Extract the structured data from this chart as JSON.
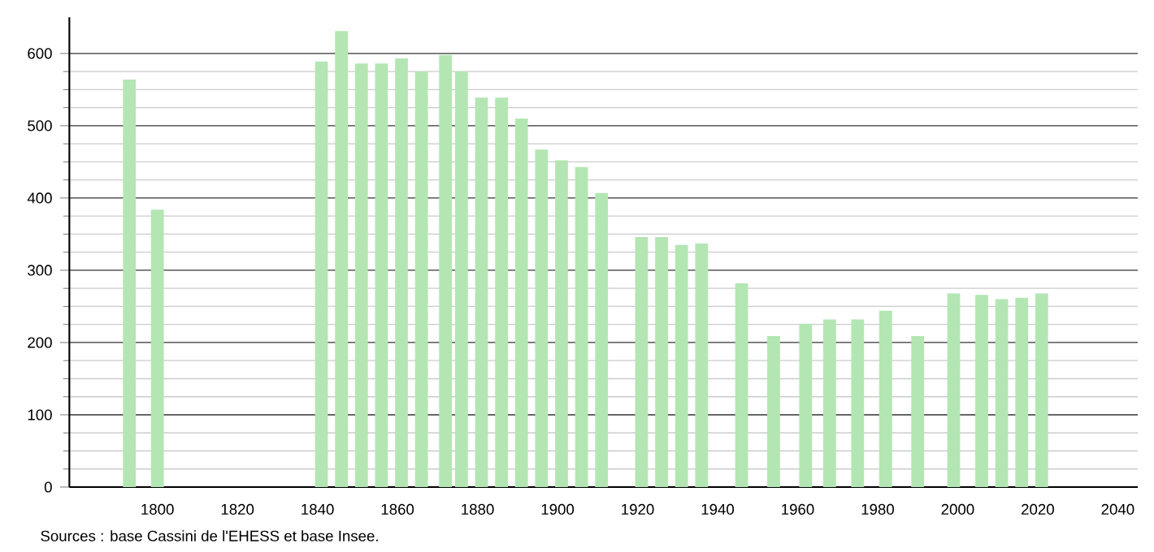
{
  "chart_data": {
    "type": "bar",
    "x": [
      1793,
      1800,
      1841,
      1846,
      1851,
      1856,
      1861,
      1866,
      1872,
      1876,
      1881,
      1886,
      1891,
      1896,
      1901,
      1906,
      1911,
      1921,
      1926,
      1931,
      1936,
      1946,
      1954,
      1962,
      1968,
      1975,
      1982,
      1990,
      1999,
      2006,
      2011,
      2016,
      2021
    ],
    "values": [
      564,
      384,
      589,
      631,
      586,
      586,
      593,
      575,
      598,
      575,
      539,
      539,
      510,
      467,
      452,
      443,
      407,
      346,
      346,
      335,
      337,
      282,
      209,
      226,
      232,
      232,
      244,
      209,
      268,
      266,
      260,
      262,
      268
    ],
    "color": "#b3e6b3",
    "xlim": [
      1778,
      2045
    ],
    "xticks": [
      1800,
      1820,
      1840,
      1860,
      1880,
      1900,
      1920,
      1940,
      1960,
      1980,
      2000,
      2020,
      2040
    ],
    "ylim": [
      0,
      650
    ],
    "yticks": [
      0,
      100,
      200,
      300,
      400,
      500,
      600
    ],
    "grid": "y",
    "annotations": [
      "Sources : base Cassini de l'EHESS et base Insee."
    ]
  }
}
